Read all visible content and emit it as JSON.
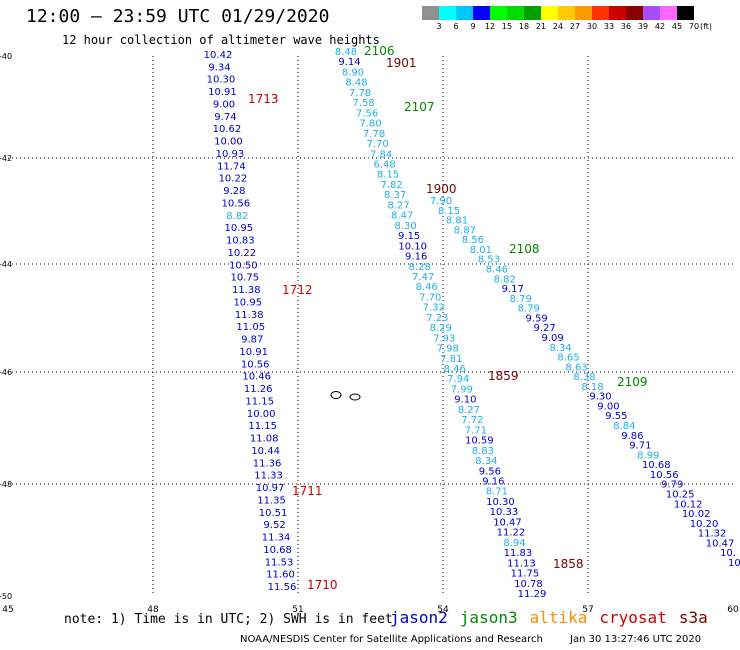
{
  "header": {
    "title": "12:00 — 23:59 UTC 01/29/2020",
    "subtitle": "12 hour collection of altimeter wave heights"
  },
  "legend": {
    "colors": [
      "#909090",
      "#00ffff",
      "#00c8ff",
      "#0000ff",
      "#00ff00",
      "#00dd00",
      "#00a000",
      "#ffff00",
      "#ffcc00",
      "#ff9900",
      "#ff3300",
      "#cc0000",
      "#880000",
      "#a64dff",
      "#ff66ff",
      "#000000"
    ],
    "labels": [
      "3",
      "6",
      "9",
      "12",
      "15",
      "18",
      "21",
      "24",
      "27",
      "30",
      "33",
      "36",
      "39",
      "42",
      "45",
      "70"
    ],
    "unit": "(ft)"
  },
  "map": {
    "lat_ticks": [
      "-40",
      "-42",
      "-44",
      "-46",
      "-48",
      "-50"
    ],
    "lon_ticks": [
      "45",
      "48",
      "51",
      "54",
      "57",
      "60"
    ],
    "colors": {
      "jason2": "#0000cc",
      "jason3": "#008800",
      "altika": "#ff8c00",
      "cryosat": "#cc0000",
      "s3a": "#7a0000"
    },
    "tracks": [
      {
        "label": "1713",
        "color": "#cc0000",
        "values": [
          "10.42",
          "9.34",
          "10.30",
          "10.91",
          "9.00",
          "9.74",
          "10.62",
          "10.00",
          "10.93",
          "11.74",
          "10.22",
          "9.28",
          "10.56",
          "8.82",
          "10.95",
          "10.83",
          "10.22",
          "10.50",
          "10.75",
          "11.38",
          "10.95",
          "11.38",
          "11.05",
          "9.87",
          "10.91",
          "10.56",
          "10.46",
          "11.26",
          "11.15",
          "10.00",
          "11.15",
          "11.08",
          "10.44",
          "11.36",
          "11.33",
          "10.97",
          "11.35",
          "10.51",
          "9.52",
          "11.34",
          "10.68",
          "11.53",
          "11.60",
          "11.56"
        ]
      },
      {
        "label": "1712",
        "color": "#cc0000",
        "values": []
      },
      {
        "label": "1711",
        "color": "#cc0000",
        "values": []
      },
      {
        "label": "1710",
        "color": "#cc0000",
        "values": []
      },
      {
        "label": "2106",
        "color": "#008800",
        "values": [
          "8.48",
          "9.14",
          "8.90",
          "8.48",
          "7.78",
          "7.58",
          "7.56",
          "7.80",
          "7.78",
          "7.70",
          "7.84",
          "6.48",
          "8.15",
          "7.82",
          "8.37",
          "8.27",
          "8.47",
          "8.30",
          "9.15",
          "10.10",
          "9.16",
          "8.28",
          "7.47",
          "8.46",
          "7.70",
          "7.32",
          "7.23",
          "8.29",
          "7.93",
          "7.98",
          "7.81",
          "8.46",
          "7.94",
          "7.99",
          "9.10",
          "8.27",
          "7.72",
          "7.71",
          "10.59",
          "8.83",
          "8.34",
          "9.56",
          "9.16",
          "8.71",
          "10.30",
          "10.33",
          "10.47",
          "11.22",
          "8.94",
          "11.83",
          "11.13",
          "11.75",
          "10.78",
          "11.29"
        ]
      },
      {
        "label": "1901",
        "color": "#7a0000",
        "values": []
      },
      {
        "label": "2107",
        "color": "#008800",
        "values": [
          "7.90",
          "8.15",
          "8.81",
          "8.87",
          "8.56",
          "8.01",
          "8.53",
          "8.46",
          "8.82",
          "9.17",
          "8.79",
          "8.79",
          "9.59",
          "9.27",
          "9.09",
          "8.34",
          "8.65",
          "8.63",
          "8.38",
          "8.18",
          "9.30",
          "9.00",
          "9.55",
          "8.84",
          "9.86",
          "9.71",
          "8.99",
          "10.68",
          "10.56",
          "9.79",
          "10.25",
          "10.12",
          "10.02",
          "10.20",
          "11.32",
          "10.47",
          "10.",
          "10."
        ]
      },
      {
        "label": "1900",
        "color": "#7a0000",
        "values": []
      },
      {
        "label": "2108",
        "color": "#008800",
        "values": []
      },
      {
        "label": "1859",
        "color": "#7a0000",
        "values": []
      },
      {
        "label": "2109",
        "color": "#008800",
        "values": []
      },
      {
        "label": "1858",
        "color": "#7a0000",
        "values": []
      }
    ]
  },
  "footer": {
    "note": "note:  1) Time is in UTC;  2) SWH is in feet",
    "satellites": [
      {
        "name": "jason2",
        "color": "#0000cc"
      },
      {
        "name": "jason3",
        "color": "#008800"
      },
      {
        "name": "altika",
        "color": "#ff8c00"
      },
      {
        "name": "cryosat",
        "color": "#cc0000"
      },
      {
        "name": "s3a",
        "color": "#7a0000"
      }
    ],
    "credit": "NOAA/NESDIS Center for Satellite Applications and Research",
    "timestamp": "Jan 30 13:27:46 UTC 2020"
  }
}
